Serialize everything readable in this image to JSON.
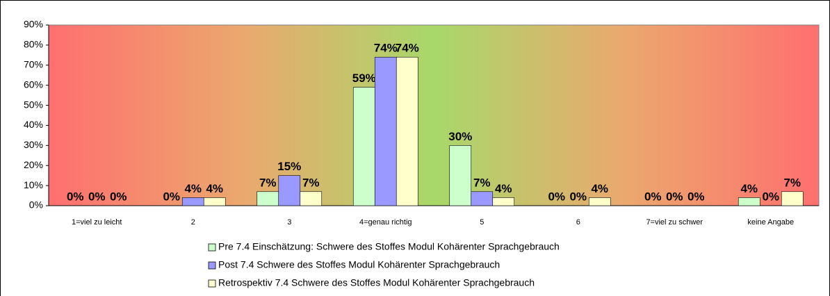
{
  "chart_data": {
    "type": "bar",
    "categories": [
      "1=viel zu leicht",
      "2",
      "3",
      "4=genau richtig",
      "5",
      "6",
      "7=viel zu schwer",
      "keine Angabe"
    ],
    "series": [
      {
        "name": "Pre 7.4 Einschätzung: Schwere des Stoffes Modul Kohärenter Sprachgebrauch",
        "color": "#ccffcc",
        "values": [
          0,
          0,
          7,
          59,
          30,
          0,
          0,
          4
        ],
        "value_labels": [
          "0%",
          "0%",
          "7%",
          "59%",
          "30%",
          "0%",
          "0%",
          "4%"
        ]
      },
      {
        "name": "Post 7.4 Schwere des Stoffes Modul Kohärenter Sprachgebrauch",
        "color": "#9999ff",
        "values": [
          0,
          4,
          15,
          74,
          7,
          0,
          0,
          0
        ],
        "value_labels": [
          "0%",
          "4%",
          "15%",
          "74%",
          "7%",
          "0%",
          "0%",
          "0%"
        ]
      },
      {
        "name": "Retrospektiv 7.4 Schwere des Stoffes Modul Kohärenter Sprachgebrauch",
        "color": "#ffffcc",
        "values": [
          0,
          4,
          7,
          74,
          4,
          4,
          0,
          7
        ],
        "value_labels": [
          "0%",
          "4%",
          "7%",
          "74%",
          "4%",
          "4%",
          "0%",
          "7%"
        ]
      }
    ],
    "ylim": [
      0,
      90
    ],
    "yticks": [
      {
        "value": 0,
        "label": "0%"
      },
      {
        "value": 10,
        "label": "10%"
      },
      {
        "value": 20,
        "label": "20%"
      },
      {
        "value": 30,
        "label": "30%"
      },
      {
        "value": 40,
        "label": "40%"
      },
      {
        "value": 50,
        "label": "50%"
      },
      {
        "value": 60,
        "label": "60%"
      },
      {
        "value": 70,
        "label": "70%"
      },
      {
        "value": 80,
        "label": "80%"
      },
      {
        "value": 90,
        "label": "90%"
      }
    ],
    "legend": "bottom"
  }
}
